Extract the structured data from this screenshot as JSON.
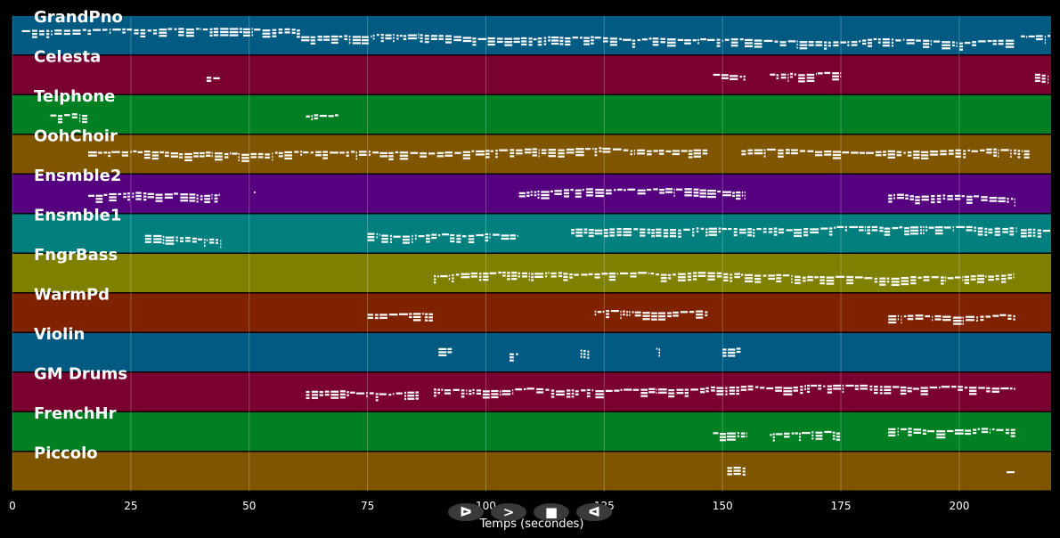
{
  "chart_data": {
    "type": "piano-roll",
    "xlabel": "Temps (secondes)",
    "xlim": [
      0,
      219.4
    ],
    "xticks": [
      0,
      25,
      50,
      75,
      100,
      125,
      150,
      175,
      200
    ],
    "grid": true,
    "tracks": [
      {
        "name": "GrandPno",
        "color": "#005a82",
        "regions": [
          [
            2,
            61
          ],
          [
            61,
            123
          ],
          [
            123,
            212
          ],
          [
            213,
            219.4
          ]
        ]
      },
      {
        "name": "Celesta",
        "color": "#7a0030",
        "regions": [
          [
            41,
            44
          ],
          [
            148,
            155
          ],
          [
            160,
            175
          ],
          [
            216,
            219
          ]
        ]
      },
      {
        "name": "Telphone",
        "color": "#007f23",
        "regions": [
          [
            8,
            16
          ],
          [
            62,
            69
          ]
        ]
      },
      {
        "name": "OohChoir",
        "color": "#7f5500",
        "regions": [
          [
            16,
            147
          ],
          [
            154,
            215
          ]
        ]
      },
      {
        "name": "Ensmble2",
        "color": "#55007f",
        "regions": [
          [
            16,
            44
          ],
          [
            51,
            51.5
          ],
          [
            107,
            155
          ],
          [
            185,
            212
          ]
        ]
      },
      {
        "name": "Ensmble1",
        "color": "#007f7f",
        "regions": [
          [
            28,
            44
          ],
          [
            75,
            107
          ],
          [
            118,
            123
          ],
          [
            123,
            212
          ],
          [
            213,
            219.4
          ]
        ]
      },
      {
        "name": "FngrBass",
        "color": "#7f7f00",
        "regions": [
          [
            89,
            212
          ]
        ]
      },
      {
        "name": "WarmPd",
        "color": "#7f2200",
        "regions": [
          [
            75,
            89
          ],
          [
            123,
            147
          ],
          [
            185,
            212
          ]
        ]
      },
      {
        "name": "Violin",
        "color": "#005a82",
        "regions": [
          [
            90,
            93
          ],
          [
            105,
            107
          ],
          [
            120,
            122
          ],
          [
            136,
            137
          ],
          [
            150,
            154
          ]
        ]
      },
      {
        "name": "GM Drums",
        "color": "#7a0030",
        "regions": [
          [
            62,
            86
          ],
          [
            89,
            212
          ]
        ]
      },
      {
        "name": "FrenchHr",
        "color": "#007f23",
        "regions": [
          [
            148,
            155
          ],
          [
            160,
            175
          ],
          [
            185,
            212
          ]
        ]
      },
      {
        "name": "Piccolo",
        "color": "#7f5500",
        "regions": [
          [
            151,
            155
          ],
          [
            210,
            212
          ]
        ]
      }
    ]
  },
  "controls": [
    {
      "name": "play-button",
      "glyph": "ᐅ"
    },
    {
      "name": "forward-button",
      "glyph": ">"
    },
    {
      "name": "stop-button",
      "glyph": "■"
    },
    {
      "name": "rewind-button",
      "glyph": "ᐊ"
    }
  ]
}
